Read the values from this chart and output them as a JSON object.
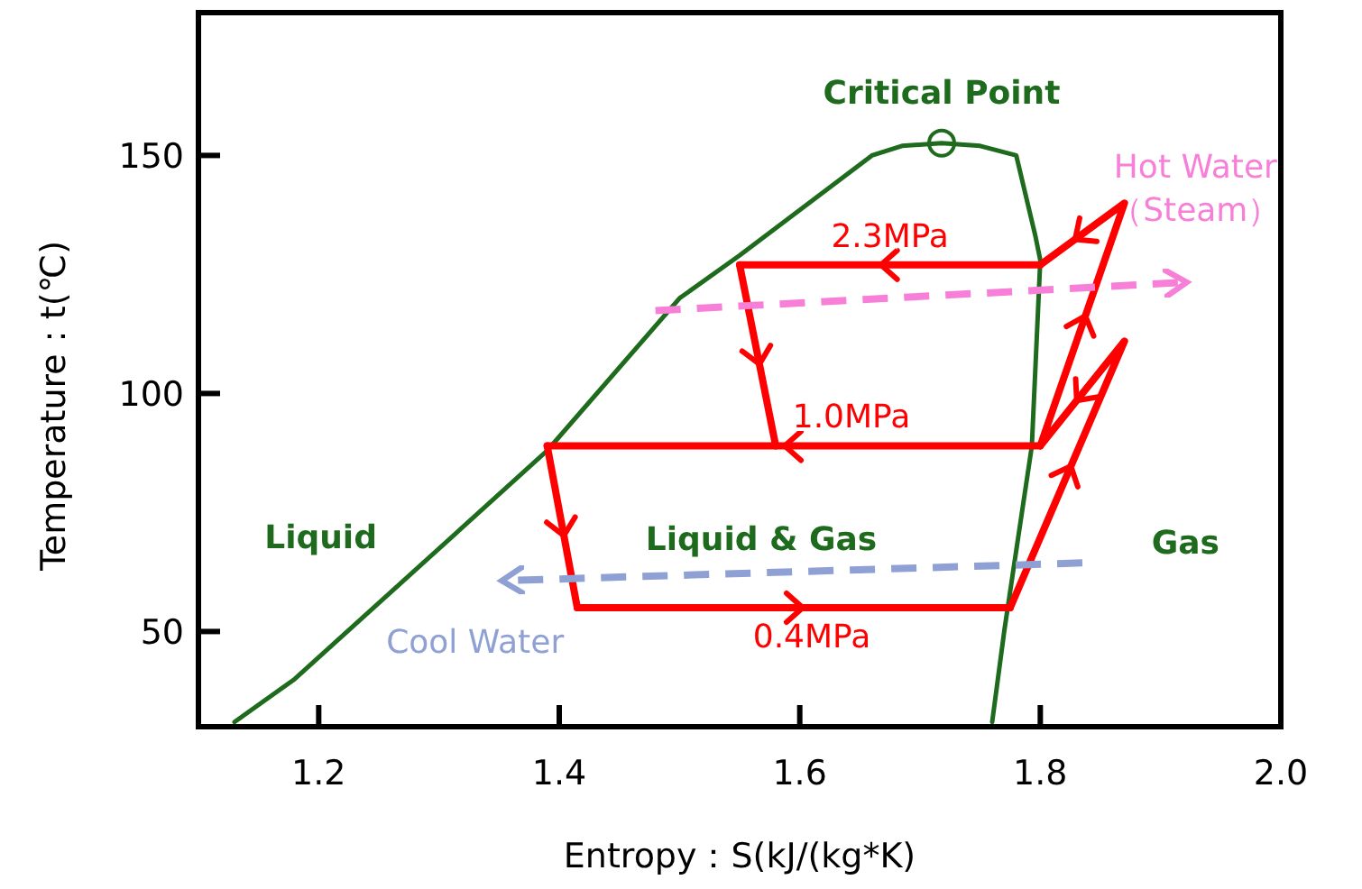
{
  "chart_data": {
    "type": "line",
    "xlabel": "Entropy：S(kJ/(kg*K)",
    "ylabel": "Temperature：t(℃)",
    "xlim": [
      1.1,
      2.0
    ],
    "xticks": [
      1.2,
      1.4,
      1.6,
      1.8,
      {
        "value": 2.0,
        "label": "2.0"
      }
    ],
    "ylim": [
      30,
      180
    ],
    "yticks": [
      50,
      100,
      150
    ],
    "grid": false,
    "series": [
      {
        "color": "#1e6b1e",
        "x": [
          1.13,
          1.18,
          1.39,
          1.5,
          1.55,
          1.66,
          1.685,
          1.718,
          1.75,
          1.78,
          1.796,
          1.8,
          1.793,
          1.78,
          1.77,
          1.76
        ],
        "values": [
          31,
          40,
          88,
          120,
          129,
          150,
          152,
          152.6,
          152,
          150,
          133,
          128,
          89,
          67,
          50,
          31
        ]
      },
      {
        "type": "scatter",
        "marker": "circle",
        "name": "Critical Point",
        "color": "#1e6b1e",
        "x": [
          1.718
        ],
        "values": [
          152.6
        ]
      },
      {
        "name": "2.3MPa",
        "color": "#ff0000",
        "x": [
          1.8,
          1.55
        ],
        "values": [
          127,
          127
        ]
      },
      {
        "name": "1.0MPa",
        "color": "#ff0000",
        "x": [
          1.8,
          1.39
        ],
        "values": [
          89,
          89
        ]
      },
      {
        "name": "0.4MPa",
        "color": "#ff0000",
        "x": [
          1.415,
          1.775
        ],
        "values": [
          55,
          55
        ]
      },
      {
        "color": "#ff0000",
        "x": [
          1.775,
          1.87,
          1.8,
          1.87,
          1.8
        ],
        "values": [
          55,
          111,
          89,
          140,
          127
        ]
      },
      {
        "color": "#ff0000",
        "x": [
          1.55,
          1.58
        ],
        "values": [
          127,
          89
        ]
      },
      {
        "color": "#ff0000",
        "x": [
          1.39,
          1.415
        ],
        "values": [
          89,
          55
        ]
      },
      {
        "name": "Hot Water\n（Steam）",
        "color": "#f77fd8",
        "line_style": "dashed",
        "x": [
          1.48,
          1.917
        ],
        "values": [
          117.4,
          123.3
        ]
      },
      {
        "name": "Cool Water",
        "color": "#8fa0d4",
        "line_style": "dashed",
        "x": [
          1.835,
          1.357
        ],
        "values": [
          64.4,
          60.7
        ]
      }
    ],
    "annotations": [
      "Liquid",
      "Liquid & Gas",
      "Gas"
    ]
  }
}
